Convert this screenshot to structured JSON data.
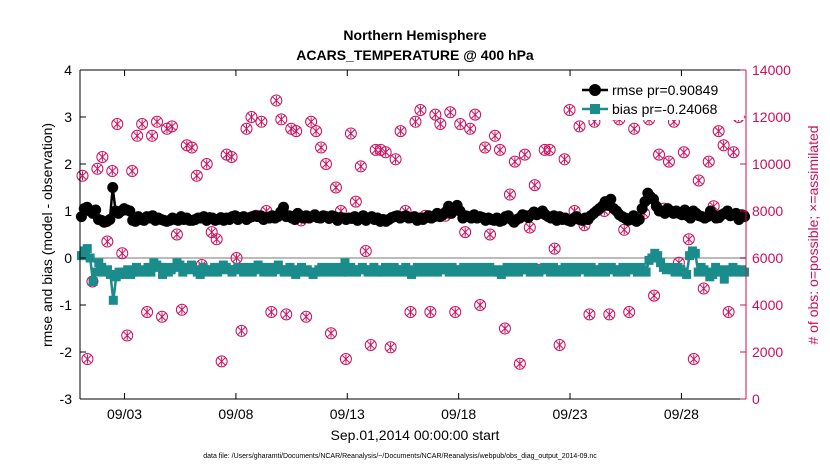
{
  "chart_data": {
    "type": "line",
    "title": "Northern Hemisphere",
    "subtitle": "ACARS_TEMPERATURE @ 400 hPa",
    "xlabel": "Sep.01,2014 00:00:00 start",
    "ylabel_left": "rmse and bias (model - observation)",
    "ylabel_right": "# of obs: o=possible; ×=assimilated",
    "footnote": "data file: /Users/gharamti/Documents/NCAR/Reanalysis/~/Documents/NCAR/Reanalysis/webpub/obs_diag_output_2014-09.nc",
    "x_ticks": [
      "09/03",
      "09/08",
      "09/13",
      "09/18",
      "09/23",
      "09/28"
    ],
    "y_left_ticks": [
      "-3",
      "-2",
      "-1",
      "0",
      "1",
      "2",
      "3",
      "4"
    ],
    "y_right_ticks": [
      "0",
      "2000",
      "4000",
      "6000",
      "8000",
      "10000",
      "12000",
      "14000"
    ],
    "xlim": [
      1.0,
      30.9
    ],
    "x_tick_values": [
      3,
      8,
      13,
      18,
      23,
      28
    ],
    "ylim_left": [
      -3,
      4
    ],
    "ylim_right": [
      0,
      14000
    ],
    "colors": {
      "rmse": "#000000",
      "bias": "#1a8c8c",
      "obs": "#cc0f5e",
      "zero_line": "#bbbbbb"
    },
    "series": [
      {
        "name": "rmse pr=0.90849",
        "marker": "circle",
        "values": [
          0.88,
          1.05,
          1.08,
          1.0,
          0.95,
          1.02,
          0.82,
          0.8,
          0.76,
          0.78,
          0.82,
          1.5,
          1.0,
          0.95,
          1.0,
          1.05,
          1.02,
          1.0,
          0.8,
          0.78,
          0.88,
          0.82,
          0.8,
          0.88,
          0.85,
          0.9,
          0.8,
          0.85,
          0.82,
          0.8,
          0.78,
          0.8,
          0.85,
          0.82,
          0.8,
          0.88,
          0.82,
          0.85,
          0.8,
          0.8,
          0.82,
          0.85,
          0.85,
          0.88,
          0.8,
          0.86,
          0.85,
          0.8,
          0.82,
          0.86,
          0.8,
          0.85,
          0.82,
          0.88,
          0.9,
          0.82,
          0.86,
          0.88,
          0.82,
          0.86,
          0.88,
          0.9,
          0.88,
          0.9,
          0.82,
          0.86,
          0.85,
          0.9,
          0.85,
          0.88,
          0.98,
          1.08,
          0.88,
          0.9,
          0.85,
          0.82,
          0.95,
          0.9,
          0.85,
          0.9,
          0.85,
          0.88,
          0.92,
          0.86,
          0.85,
          0.9,
          0.88,
          0.84,
          0.9,
          0.88,
          0.8,
          0.86,
          0.85,
          0.82,
          0.85,
          0.84,
          0.88,
          0.8,
          0.85,
          0.9,
          0.8,
          0.85,
          0.88,
          0.82,
          0.85,
          0.78,
          0.82,
          0.78,
          0.82,
          0.86,
          0.88,
          0.9,
          0.85,
          0.88,
          0.9,
          0.85,
          0.86,
          0.88,
          0.8,
          0.85,
          0.82,
          0.86,
          0.9,
          0.85,
          0.88,
          0.95,
          0.88,
          0.92,
          0.98,
          1.1,
          0.95,
          1.05,
          1.12,
          1.0,
          0.85,
          0.9,
          0.88,
          0.85,
          0.92,
          0.85,
          0.88,
          0.86,
          0.8,
          0.85,
          0.82,
          0.8,
          0.85,
          0.78,
          0.8,
          0.88,
          0.9,
          0.82,
          0.76,
          0.82,
          0.85,
          0.92,
          0.9,
          0.86,
          0.92,
          0.98,
          0.92,
          0.95,
          1.0,
          0.92,
          0.88,
          0.85,
          0.9,
          0.8,
          0.88,
          0.82,
          0.85,
          0.8,
          0.78,
          0.84,
          0.88,
          0.82,
          0.8,
          0.85,
          0.82,
          0.9,
          0.95,
          1.0,
          1.05,
          1.1,
          1.2,
          1.12,
          1.25,
          1.05,
          1.0,
          0.92,
          0.88,
          0.85,
          0.8,
          0.82,
          0.9,
          0.78,
          0.82,
          1.05,
          1.2,
          1.38,
          1.3,
          1.25,
          1.1,
          1.0,
          1.0,
          0.95,
          1.05,
          1.0,
          0.95,
          1.0,
          0.95,
          0.92,
          1.02,
          0.9,
          0.85,
          1.0,
          0.95,
          0.9,
          0.88,
          0.85,
          0.88,
          1.0,
          0.92,
          0.85,
          0.86,
          0.92,
          0.95,
          1.0,
          0.9,
          0.92,
          0.95,
          0.82,
          0.92,
          0.88
        ]
      },
      {
        "name": "bias pr=-0.24068",
        "marker": "square",
        "values": [
          0.05,
          0.15,
          0.2,
          0.0,
          -0.5,
          -0.3,
          -0.1,
          -0.2,
          -0.3,
          -0.25,
          -0.35,
          -0.9,
          -0.4,
          -0.3,
          -0.35,
          -0.3,
          -0.25,
          -0.35,
          -0.3,
          -0.2,
          -0.3,
          -0.25,
          -0.3,
          -0.2,
          -0.3,
          -0.1,
          -0.15,
          -0.2,
          -0.35,
          -0.2,
          -0.3,
          -0.25,
          -0.2,
          -0.1,
          -0.15,
          -0.3,
          -0.25,
          -0.2,
          -0.15,
          -0.25,
          -0.3,
          -0.35,
          -0.2,
          -0.25,
          -0.3,
          -0.25,
          -0.2,
          -0.3,
          -0.25,
          -0.15,
          -0.2,
          -0.25,
          -0.3,
          -0.25,
          -0.2,
          -0.25,
          -0.3,
          -0.2,
          -0.25,
          -0.3,
          -0.2,
          -0.15,
          -0.25,
          -0.3,
          -0.2,
          -0.25,
          -0.3,
          -0.2,
          -0.15,
          -0.25,
          -0.3,
          -0.25,
          -0.2,
          -0.3,
          -0.35,
          -0.25,
          -0.2,
          -0.3,
          -0.25,
          -0.3,
          -0.35,
          -0.3,
          -0.25,
          -0.2,
          -0.3,
          -0.25,
          -0.2,
          -0.3,
          -0.25,
          -0.2,
          -0.3,
          -0.1,
          -0.3,
          -0.2,
          -0.25,
          -0.3,
          -0.25,
          -0.2,
          -0.25,
          -0.3,
          -0.25,
          -0.2,
          -0.3,
          -0.25,
          -0.3,
          -0.2,
          -0.25,
          -0.3,
          -0.2,
          -0.25,
          -0.3,
          -0.25,
          -0.2,
          -0.3,
          -0.35,
          -0.25,
          -0.2,
          -0.3,
          -0.25,
          -0.2,
          -0.3,
          -0.25,
          -0.2,
          -0.3,
          -0.25,
          -0.2,
          -0.25,
          -0.3,
          -0.2,
          -0.25,
          -0.3,
          -0.25,
          -0.2,
          -0.3,
          -0.25,
          -0.2,
          -0.3,
          -0.25,
          -0.2,
          -0.3,
          -0.25,
          -0.2,
          -0.3,
          -0.25,
          -0.3,
          -0.35,
          -0.25,
          -0.2,
          -0.3,
          -0.25,
          -0.2,
          -0.3,
          -0.25,
          -0.2,
          -0.25,
          -0.3,
          -0.2,
          -0.25,
          -0.3,
          -0.25,
          -0.2,
          -0.25,
          -0.3,
          -0.2,
          -0.25,
          -0.3,
          -0.25,
          -0.2,
          -0.3,
          -0.25,
          -0.2,
          -0.3,
          -0.25,
          -0.2,
          -0.25,
          -0.3,
          -0.2,
          -0.25,
          -0.3,
          -0.25,
          -0.2,
          -0.3,
          -0.25,
          -0.2,
          -0.25,
          -0.3,
          -0.25,
          -0.2,
          -0.3,
          -0.25,
          -0.2,
          -0.25,
          -0.3,
          -0.2,
          -0.25,
          -0.3,
          -0.05,
          0.0,
          0.1,
          0.05,
          -0.1,
          -0.2,
          -0.25,
          -0.2,
          -0.25,
          -0.3,
          -0.2,
          -0.25,
          -0.3,
          -0.35,
          0.05,
          0.15,
          0.1,
          -0.3,
          -0.2,
          -0.25,
          -0.3,
          -0.4,
          -0.35,
          -0.2,
          -0.25,
          -0.3,
          -0.45,
          -0.25,
          -0.3,
          -0.2,
          -0.25,
          -0.3,
          -0.25,
          -0.3
        ]
      }
    ],
    "obs_possible": [
      9500,
      1700,
      5000,
      9800,
      10300,
      6700,
      9700,
      11700,
      6200,
      2700,
      9700,
      11200,
      11700,
      3700,
      11200,
      11800,
      3500,
      11500,
      11600,
      7000,
      3800,
      10800,
      10700,
      9500,
      5700,
      10000,
      7100,
      6800,
      1600,
      10400,
      10300,
      6000,
      2900,
      11500,
      12000,
      7800,
      11800,
      8000,
      3700,
      12700,
      11900,
      3600,
      11500,
      11400,
      7600,
      3500,
      11800,
      11400,
      10700,
      10000,
      2800,
      9000,
      8000,
      1700,
      11300,
      8400,
      9900,
      6300,
      2300,
      10600,
      10600,
      10500,
      2200,
      10200,
      11400,
      8000,
      3700,
      11800,
      12300,
      7800,
      3700,
      12100,
      11700,
      7800,
      12200,
      3700,
      11700,
      7100,
      11500,
      12100,
      4000,
      10700,
      7000,
      11200,
      10600,
      3000,
      8700,
      10100,
      1500,
      10400,
      7300,
      9100,
      5500,
      10600,
      10600,
      6400,
      2300,
      10200,
      12300,
      8000,
      11600,
      7400,
      3600,
      11800,
      12300,
      8000,
      3600,
      12100,
      11900,
      7200,
      3700,
      11500,
      12700,
      7900,
      11900,
      4400,
      10400,
      8100,
      10100,
      11800,
      5800,
      10500,
      6800,
      1700,
      9300,
      4700,
      10100,
      8200,
      11400,
      10800,
      3700,
      10500,
      12000,
      7800
    ]
  }
}
